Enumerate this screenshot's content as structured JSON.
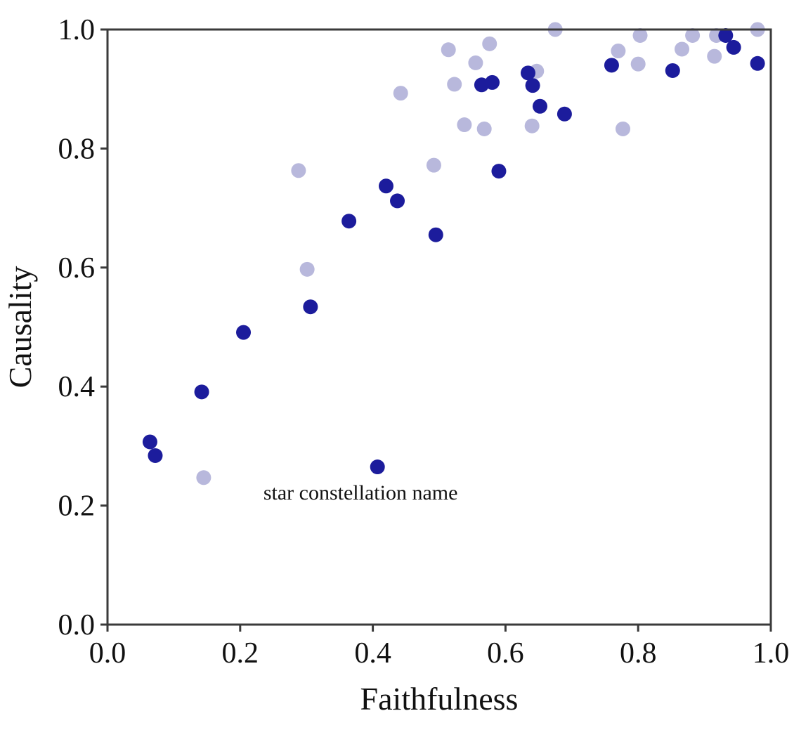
{
  "chart_data": {
    "type": "scatter",
    "title": "",
    "xlabel": "Faithfulness",
    "ylabel": "Causality",
    "xlim": [
      0.0,
      1.0
    ],
    "ylim": [
      0.0,
      1.0
    ],
    "xticks": [
      "0.0",
      "0.2",
      "0.4",
      "0.6",
      "0.8",
      "1.0"
    ],
    "yticks": [
      "0.0",
      "0.2",
      "0.4",
      "0.6",
      "0.8",
      "1.0"
    ],
    "grid": false,
    "colors": {
      "series_dark": "#1c1c9c",
      "series_light": "#b8b8dc"
    },
    "series": [
      {
        "color": "#b8b8dc",
        "points": [
          {
            "x": 0.675,
            "y": 1.0
          },
          {
            "x": 0.98,
            "y": 1.0
          },
          {
            "x": 0.803,
            "y": 0.99
          },
          {
            "x": 0.882,
            "y": 0.99
          },
          {
            "x": 0.918,
            "y": 0.99
          },
          {
            "x": 0.576,
            "y": 0.976
          },
          {
            "x": 0.514,
            "y": 0.966
          },
          {
            "x": 0.77,
            "y": 0.964
          },
          {
            "x": 0.866,
            "y": 0.967
          },
          {
            "x": 0.915,
            "y": 0.955
          },
          {
            "x": 0.555,
            "y": 0.944
          },
          {
            "x": 0.8,
            "y": 0.942
          },
          {
            "x": 0.647,
            "y": 0.93
          },
          {
            "x": 0.523,
            "y": 0.908
          },
          {
            "x": 0.442,
            "y": 0.893
          },
          {
            "x": 0.538,
            "y": 0.84
          },
          {
            "x": 0.568,
            "y": 0.833
          },
          {
            "x": 0.64,
            "y": 0.838
          },
          {
            "x": 0.777,
            "y": 0.833
          },
          {
            "x": 0.288,
            "y": 0.763
          },
          {
            "x": 0.492,
            "y": 0.772
          },
          {
            "x": 0.301,
            "y": 0.597
          },
          {
            "x": 0.145,
            "y": 0.247
          }
        ]
      },
      {
        "color": "#1c1c9c",
        "points": [
          {
            "x": 0.932,
            "y": 0.99
          },
          {
            "x": 0.944,
            "y": 0.97
          },
          {
            "x": 0.98,
            "y": 0.943
          },
          {
            "x": 0.76,
            "y": 0.94
          },
          {
            "x": 0.852,
            "y": 0.931
          },
          {
            "x": 0.634,
            "y": 0.927
          },
          {
            "x": 0.58,
            "y": 0.911
          },
          {
            "x": 0.564,
            "y": 0.907
          },
          {
            "x": 0.641,
            "y": 0.906
          },
          {
            "x": 0.652,
            "y": 0.871
          },
          {
            "x": 0.689,
            "y": 0.858
          },
          {
            "x": 0.59,
            "y": 0.762
          },
          {
            "x": 0.42,
            "y": 0.737
          },
          {
            "x": 0.437,
            "y": 0.712
          },
          {
            "x": 0.364,
            "y": 0.678
          },
          {
            "x": 0.495,
            "y": 0.655
          },
          {
            "x": 0.306,
            "y": 0.534
          },
          {
            "x": 0.205,
            "y": 0.491
          },
          {
            "x": 0.142,
            "y": 0.391
          },
          {
            "x": 0.064,
            "y": 0.307
          },
          {
            "x": 0.072,
            "y": 0.284
          },
          {
            "x": 0.407,
            "y": 0.265
          }
        ]
      }
    ],
    "annotations": [
      {
        "text": "star constellation name",
        "x": 0.235,
        "y": 0.222
      }
    ]
  }
}
